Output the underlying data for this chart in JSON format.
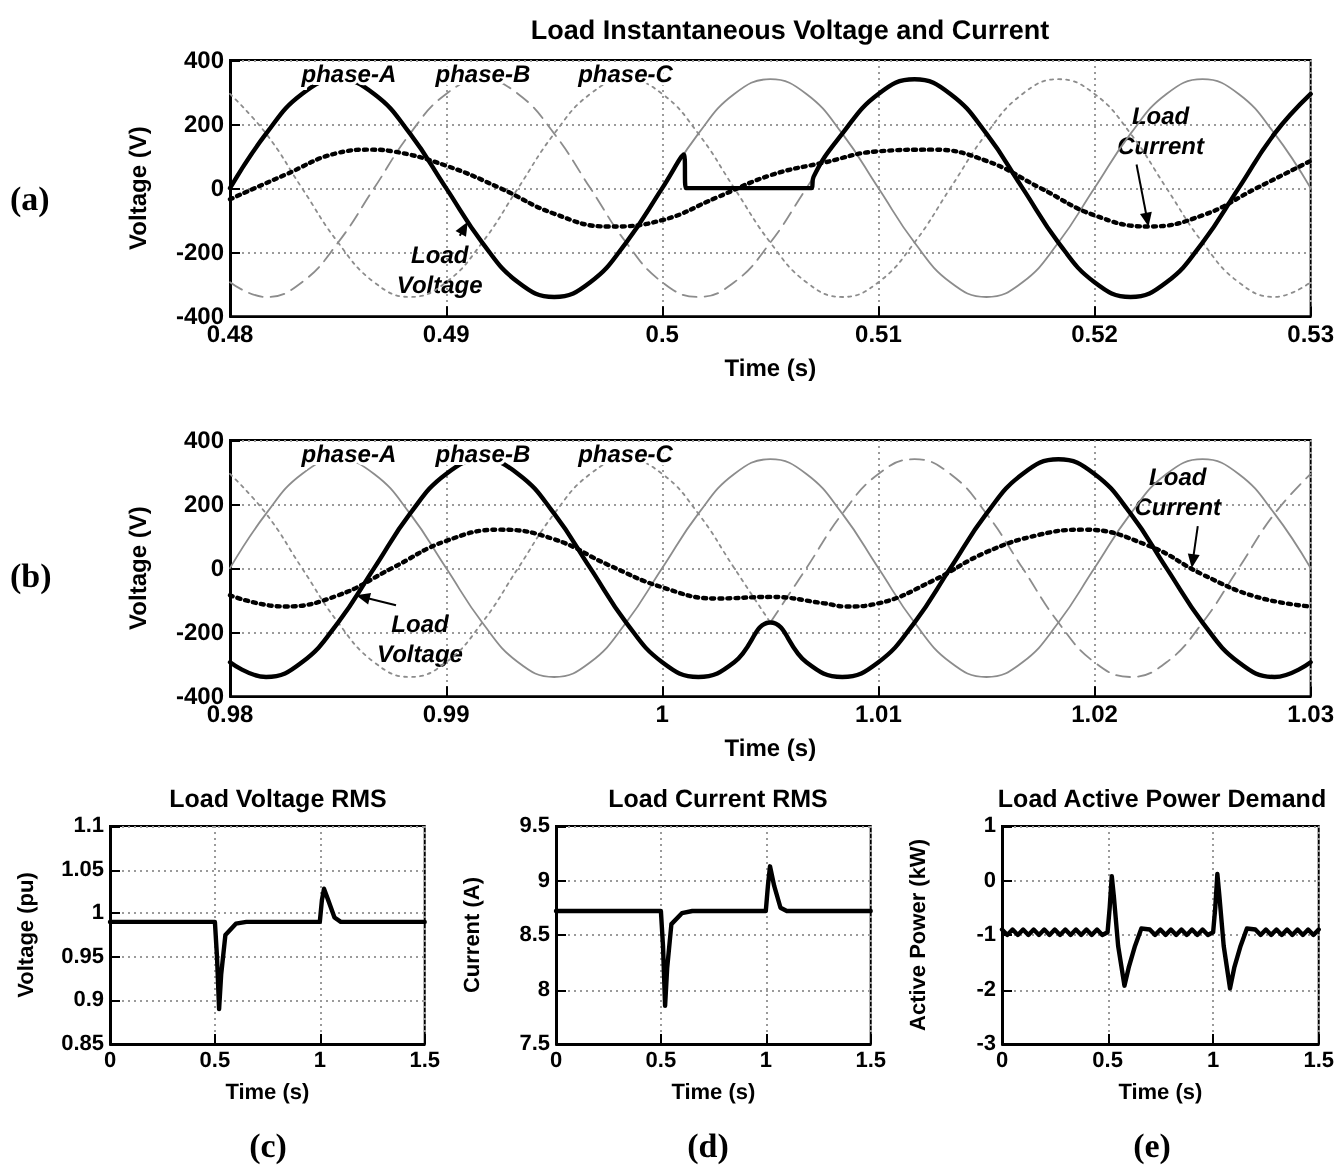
{
  "chart_data": [
    {
      "type": "line",
      "title": "Load Instantaneous Voltage and Current",
      "xlabel": "Time (s)",
      "ylabel": "Voltage (V)",
      "xlim": [
        0.48,
        0.53
      ],
      "xticks": [
        0.48,
        0.49,
        0.5,
        0.51,
        0.52,
        0.53
      ],
      "ylim": [
        -400,
        400
      ],
      "yticks": [
        -400,
        -200,
        0,
        200,
        400
      ],
      "grid": true,
      "marker": "none",
      "x": [
        0.48,
        0.48167,
        0.48333,
        0.485,
        0.48667,
        0.48833,
        0.49,
        0.49167,
        0.49333,
        0.495,
        0.49667,
        0.49833,
        0.5,
        0.50167,
        0.50333,
        0.505,
        0.50667,
        0.50833,
        0.51,
        0.51167,
        0.51333,
        0.515,
        0.51667,
        0.51833,
        0.52,
        0.52167,
        0.52333,
        0.525,
        0.52667,
        0.52833,
        0.53
      ],
      "series": [
        {
          "color": "#8c8c8c",
          "line_style": "solid",
          "values": [
            0,
            170,
            294,
            340,
            294,
            170,
            0,
            -170,
            -294,
            -340,
            -294,
            -170,
            0,
            170,
            294,
            340,
            294,
            170,
            0,
            -170,
            -294,
            -340,
            -294,
            -170,
            0,
            170,
            294,
            340,
            294,
            170,
            0
          ]
        },
        {
          "color": "#8c8c8c",
          "line_style": "dashed",
          "values": [
            -294,
            -340,
            -294,
            -170,
            0,
            170,
            294,
            340,
            294,
            170,
            0,
            -170,
            -294,
            -340,
            -294,
            -170,
            0,
            170,
            294,
            340,
            294,
            170,
            0,
            -170,
            -294,
            -340,
            -294,
            -170,
            0,
            170,
            294
          ]
        },
        {
          "color": "#8c8c8c",
          "line_style": "dotted",
          "values": [
            294,
            170,
            0,
            -170,
            -294,
            -340,
            -294,
            -170,
            0,
            170,
            294,
            340,
            294,
            170,
            0,
            -170,
            -294,
            -340,
            -294,
            -170,
            0,
            170,
            294,
            340,
            294,
            170,
            0,
            -170,
            -294,
            -340,
            -294
          ]
        },
        {
          "color": "#000000",
          "line_style": "dotted",
          "x": [
            0.48,
            0.4825,
            0.485,
            0.4865,
            0.4875,
            0.49,
            0.4925,
            0.495,
            0.4975,
            0.5,
            0.5025,
            0.505,
            0.5075,
            0.51,
            0.5125,
            0.515,
            0.5175,
            0.52,
            0.5225,
            0.525,
            0.5275,
            0.53
          ],
          "values": [
            -35,
            40,
            110,
            120,
            115,
            70,
            0,
            -80,
            -120,
            -100,
            -30,
            40,
            80,
            115,
            120,
            85,
            0,
            -85,
            -120,
            -85,
            0,
            85
          ]
        },
        {
          "color": "#000000",
          "line_style": "solid",
          "x": [
            0.48,
            0.48167,
            0.48333,
            0.485,
            0.48667,
            0.48833,
            0.49,
            0.49167,
            0.49333,
            0.495,
            0.49667,
            0.49833,
            0.5,
            0.501,
            0.5011,
            0.5069,
            0.507,
            0.50833,
            0.51,
            0.51167,
            0.51333,
            0.515,
            0.51667,
            0.51833,
            0.52,
            0.52167,
            0.52333,
            0.525,
            0.52667,
            0.52833,
            0.53
          ],
          "values": [
            0,
            170,
            294,
            340,
            294,
            170,
            0,
            -170,
            -294,
            -340,
            -294,
            -170,
            0,
            105,
            0,
            0,
            35,
            170,
            294,
            340,
            294,
            170,
            0,
            -170,
            -294,
            -340,
            -294,
            -170,
            0,
            170,
            294
          ]
        }
      ],
      "annotations": [
        "(a)",
        {
          "text": "phase-A",
          "x": 0.4855,
          "y": 355
        },
        {
          "text": "phase-B",
          "x": 0.4917,
          "y": 355
        },
        {
          "text": "phase-C",
          "x": 0.4983,
          "y": 355
        },
        {
          "text": "Load Voltage",
          "x": 0.491,
          "y": -105
        },
        {
          "text": "Load Current",
          "x": 0.5225,
          "y": -120
        }
      ]
    },
    {
      "type": "line",
      "xlabel": "Time (s)",
      "ylabel": "Voltage (V)",
      "xlim": [
        0.98,
        1.03
      ],
      "xticks": [
        0.98,
        0.99,
        1,
        1.01,
        1.02,
        1.03
      ],
      "ylim": [
        -400,
        400
      ],
      "yticks": [
        -400,
        -200,
        0,
        200,
        400
      ],
      "grid": true,
      "marker": "none",
      "x": [
        0.98,
        0.98167,
        0.98333,
        0.985,
        0.98667,
        0.98833,
        0.99,
        0.99167,
        0.99333,
        0.995,
        0.99667,
        0.99833,
        1,
        1.00167,
        1.00333,
        1.005,
        1.00667,
        1.00833,
        1.01,
        1.01167,
        1.01333,
        1.015,
        1.01667,
        1.01833,
        1.02,
        1.02167,
        1.02333,
        1.025,
        1.02667,
        1.02833,
        1.03
      ],
      "series": [
        {
          "color": "#8c8c8c",
          "line_style": "solid",
          "values": [
            0,
            170,
            294,
            340,
            294,
            170,
            0,
            -170,
            -294,
            -340,
            -294,
            -170,
            0,
            170,
            294,
            340,
            294,
            170,
            0,
            -170,
            -294,
            -340,
            -294,
            -170,
            0,
            170,
            294,
            340,
            294,
            170,
            0
          ]
        },
        {
          "color": "#8c8c8c",
          "line_style": "dashed",
          "values": [
            null,
            null,
            null,
            null,
            null,
            null,
            null,
            null,
            null,
            null,
            null,
            null,
            null,
            null,
            null,
            -170,
            0,
            170,
            294,
            340,
            294,
            170,
            0,
            -170,
            -294,
            -340,
            -294,
            -170,
            0,
            170,
            294
          ]
        },
        {
          "color": "#8c8c8c",
          "line_style": "dotted",
          "values": [
            294,
            170,
            0,
            -170,
            -294,
            -340,
            -294,
            -170,
            0,
            170,
            294,
            340,
            294,
            170,
            0,
            -170,
            null,
            null,
            null,
            null,
            null,
            null,
            null,
            null,
            null,
            null,
            null,
            null,
            null,
            null,
            null
          ]
        },
        {
          "color": "#000000",
          "line_style": "dotted",
          "x": [
            0.98,
            0.9825,
            0.985,
            0.9875,
            0.99,
            0.9925,
            0.995,
            0.9975,
            1,
            1.0025,
            1.005,
            1.0075,
            1.0085,
            1.01,
            1.0125,
            1.015,
            1.0175,
            1.0195,
            1.0225,
            1.025,
            1.0275,
            1.03
          ],
          "values": [
            -85,
            -120,
            -85,
            0,
            85,
            120,
            90,
            10,
            -60,
            -95,
            -90,
            -110,
            -120,
            -110,
            -40,
            50,
            105,
            120,
            70,
            -20,
            -90,
            -120
          ]
        },
        {
          "color": "#000000",
          "line_style": "solid",
          "values": [
            -294,
            -340,
            -294,
            -170,
            0,
            170,
            294,
            340,
            294,
            170,
            0,
            -170,
            -294,
            -340,
            -294,
            -170,
            -294,
            -340,
            -294,
            -170,
            0,
            170,
            294,
            340,
            294,
            170,
            0,
            -170,
            -294,
            -340,
            -294
          ]
        }
      ],
      "annotations": [
        "(b)",
        {
          "text": "phase-A",
          "x": 0.9855,
          "y": 355
        },
        {
          "text": "phase-B",
          "x": 0.9917,
          "y": 355
        },
        {
          "text": "phase-C",
          "x": 0.9983,
          "y": 355
        },
        {
          "text": "Load Voltage",
          "x": 0.98583,
          "y": -85
        },
        {
          "text": "Load Current",
          "x": 1.0245,
          "y": 0
        }
      ]
    },
    {
      "type": "line",
      "title": "Load Voltage RMS",
      "xlabel": "Time (s)",
      "ylabel": "Voltage (pu)",
      "xlim": [
        0,
        1.5
      ],
      "xticks": [
        0,
        0.5,
        1,
        1.5
      ],
      "ylim": [
        0.85,
        1.1
      ],
      "yticks": [
        0.85,
        0.9,
        0.95,
        1,
        1.05,
        1.1
      ],
      "grid": true,
      "marker": "none",
      "x": [
        0,
        0.5,
        0.51,
        0.52,
        0.53,
        0.55,
        0.6,
        0.65,
        1,
        1.01,
        1.02,
        1.04,
        1.07,
        1.1,
        1.5
      ],
      "series": [
        {
          "color": "#000000",
          "line_style": "solid",
          "values": [
            0.99,
            0.99,
            0.95,
            0.89,
            0.93,
            0.975,
            0.988,
            0.99,
            0.99,
            1.015,
            1.028,
            1.015,
            0.995,
            0.99,
            0.99
          ]
        }
      ],
      "annotations": [
        "(c)"
      ]
    },
    {
      "type": "line",
      "title": "Load Current RMS",
      "xlabel": "Time (s)",
      "ylabel": "Current (A)",
      "xlim": [
        0,
        1.5
      ],
      "xticks": [
        0,
        0.5,
        1,
        1.5
      ],
      "ylim": [
        7.5,
        9.5
      ],
      "yticks": [
        7.5,
        8,
        8.5,
        9,
        9.5
      ],
      "grid": true,
      "marker": "none",
      "x": [
        0,
        0.5,
        0.51,
        0.52,
        0.53,
        0.55,
        0.6,
        0.65,
        1,
        1.01,
        1.02,
        1.04,
        1.07,
        1.1,
        1.5
      ],
      "series": [
        {
          "color": "#000000",
          "line_style": "solid",
          "values": [
            8.72,
            8.72,
            8.4,
            7.85,
            8.2,
            8.6,
            8.7,
            8.72,
            8.72,
            8.95,
            9.13,
            8.95,
            8.75,
            8.72,
            8.72
          ]
        }
      ],
      "annotations": [
        "(d)"
      ]
    },
    {
      "type": "line",
      "title": "Load Active Power Demand",
      "xlabel": "Time (s)",
      "ylabel": "Active Power (kW)",
      "xlim": [
        0,
        1.5
      ],
      "xticks": [
        0,
        0.5,
        1,
        1.5
      ],
      "ylim": [
        -3,
        1
      ],
      "yticks": [
        -3,
        -2,
        -1,
        0,
        1
      ],
      "grid": true,
      "marker": "none",
      "x": [
        0,
        0.025,
        0.05,
        0.075,
        0.1,
        0.125,
        0.15,
        0.175,
        0.2,
        0.225,
        0.25,
        0.275,
        0.3,
        0.325,
        0.35,
        0.375,
        0.4,
        0.425,
        0.45,
        0.475,
        0.5,
        0.51,
        0.52,
        0.53,
        0.55,
        0.58,
        0.6,
        0.63,
        0.66,
        0.7,
        0.725,
        0.75,
        0.775,
        0.8,
        0.825,
        0.85,
        0.875,
        0.9,
        0.925,
        0.95,
        0.975,
        1,
        1.01,
        1.02,
        1.03,
        1.05,
        1.08,
        1.1,
        1.13,
        1.16,
        1.2,
        1.225,
        1.25,
        1.275,
        1.3,
        1.325,
        1.35,
        1.375,
        1.4,
        1.425,
        1.45,
        1.475,
        1.5
      ],
      "series": [
        {
          "color": "#000000",
          "line_style": "solid",
          "values": [
            -0.9,
            -1,
            -0.9,
            -1,
            -0.9,
            -1,
            -0.9,
            -1,
            -0.9,
            -1,
            -0.9,
            -1,
            -0.9,
            -1,
            -0.9,
            -1,
            -0.9,
            -1,
            -0.9,
            -1,
            -0.95,
            -0.5,
            0.08,
            -0.3,
            -1.2,
            -1.93,
            -1.6,
            -1.2,
            -0.88,
            -0.9,
            -1,
            -0.9,
            -1,
            -0.9,
            -1,
            -0.9,
            -1,
            -0.9,
            -1,
            -0.9,
            -1,
            -0.95,
            -0.5,
            0.12,
            -0.3,
            -1.2,
            -1.98,
            -1.6,
            -1.2,
            -0.88,
            -0.9,
            -1,
            -0.9,
            -1,
            -0.9,
            -1,
            -0.9,
            -1,
            -0.9,
            -1,
            -0.9,
            -1,
            -0.9
          ]
        }
      ],
      "annotations": [
        "(e)"
      ]
    }
  ]
}
